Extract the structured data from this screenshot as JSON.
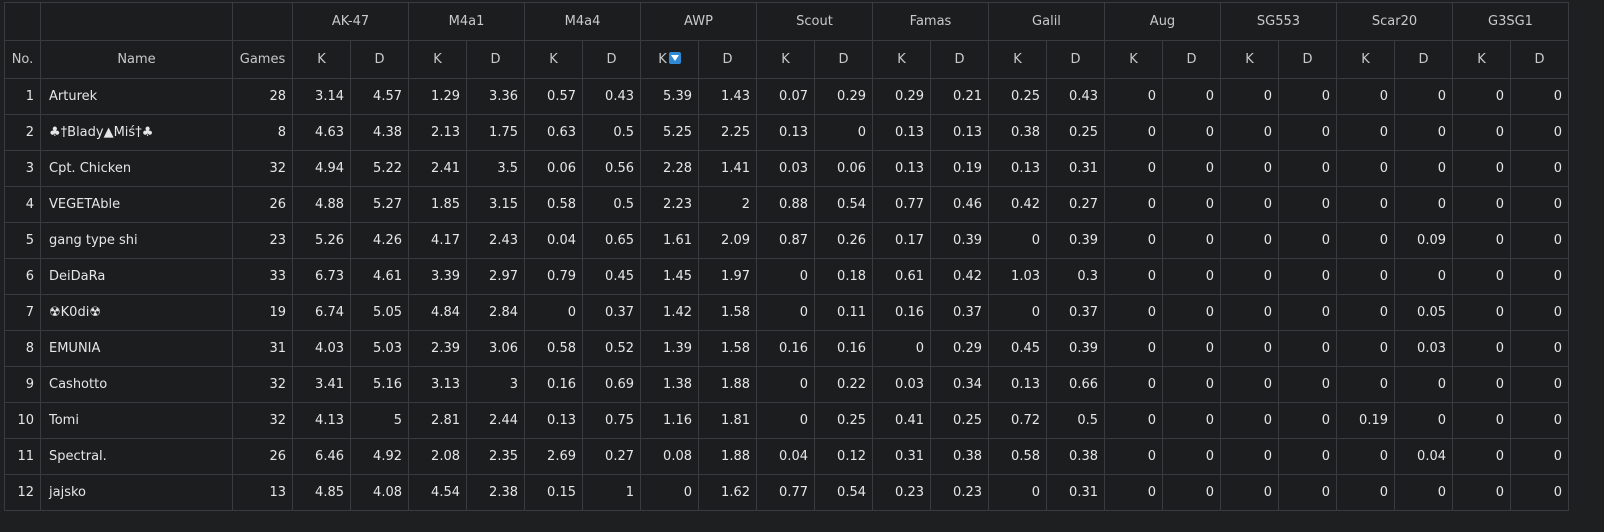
{
  "table": {
    "header_no": "No.",
    "header_name": "Name",
    "header_games": "Games",
    "k_label": "K",
    "d_label": "D",
    "sorted_weapon": "AWP",
    "sorted_column": "K",
    "weapons": [
      "AK-47",
      "M4a1",
      "M4a4",
      "AWP",
      "Scout",
      "Famas",
      "Galil",
      "Aug",
      "SG553",
      "Scar20",
      "G3SG1"
    ],
    "rows": [
      {
        "no": "1",
        "name": "Arturek",
        "games": "28",
        "stats": [
          "3.14",
          "4.57",
          "1.29",
          "3.36",
          "0.57",
          "0.43",
          "5.39",
          "1.43",
          "0.07",
          "0.29",
          "0.29",
          "0.21",
          "0.25",
          "0.43",
          "0",
          "0",
          "0",
          "0",
          "0",
          "0",
          "0",
          "0"
        ]
      },
      {
        "no": "2",
        "name": "♣†Blady▲Miś†♣",
        "games": "8",
        "stats": [
          "4.63",
          "4.38",
          "2.13",
          "1.75",
          "0.63",
          "0.5",
          "5.25",
          "2.25",
          "0.13",
          "0",
          "0.13",
          "0.13",
          "0.38",
          "0.25",
          "0",
          "0",
          "0",
          "0",
          "0",
          "0",
          "0",
          "0"
        ]
      },
      {
        "no": "3",
        "name": "Cpt. Chicken",
        "games": "32",
        "stats": [
          "4.94",
          "5.22",
          "2.41",
          "3.5",
          "0.06",
          "0.56",
          "2.28",
          "1.41",
          "0.03",
          "0.06",
          "0.13",
          "0.19",
          "0.13",
          "0.31",
          "0",
          "0",
          "0",
          "0",
          "0",
          "0",
          "0",
          "0"
        ]
      },
      {
        "no": "4",
        "name": "VEGETAble",
        "games": "26",
        "stats": [
          "4.88",
          "5.27",
          "1.85",
          "3.15",
          "0.58",
          "0.5",
          "2.23",
          "2",
          "0.88",
          "0.54",
          "0.77",
          "0.46",
          "0.42",
          "0.27",
          "0",
          "0",
          "0",
          "0",
          "0",
          "0",
          "0",
          "0"
        ]
      },
      {
        "no": "5",
        "name": "gang type shi",
        "games": "23",
        "stats": [
          "5.26",
          "4.26",
          "4.17",
          "2.43",
          "0.04",
          "0.65",
          "1.61",
          "2.09",
          "0.87",
          "0.26",
          "0.17",
          "0.39",
          "0",
          "0.39",
          "0",
          "0",
          "0",
          "0",
          "0",
          "0.09",
          "0",
          "0"
        ]
      },
      {
        "no": "6",
        "name": "DeiDaRa",
        "games": "33",
        "stats": [
          "6.73",
          "4.61",
          "3.39",
          "2.97",
          "0.79",
          "0.45",
          "1.45",
          "1.97",
          "0",
          "0.18",
          "0.61",
          "0.42",
          "1.03",
          "0.3",
          "0",
          "0",
          "0",
          "0",
          "0",
          "0",
          "0",
          "0"
        ]
      },
      {
        "no": "7",
        "name": "☢K0di☢",
        "games": "19",
        "stats": [
          "6.74",
          "5.05",
          "4.84",
          "2.84",
          "0",
          "0.37",
          "1.42",
          "1.58",
          "0",
          "0.11",
          "0.16",
          "0.37",
          "0",
          "0.37",
          "0",
          "0",
          "0",
          "0",
          "0",
          "0.05",
          "0",
          "0"
        ]
      },
      {
        "no": "8",
        "name": "EMUNIA",
        "games": "31",
        "stats": [
          "4.03",
          "5.03",
          "2.39",
          "3.06",
          "0.58",
          "0.52",
          "1.39",
          "1.58",
          "0.16",
          "0.16",
          "0",
          "0.29",
          "0.45",
          "0.39",
          "0",
          "0",
          "0",
          "0",
          "0",
          "0.03",
          "0",
          "0"
        ]
      },
      {
        "no": "9",
        "name": "Cashotto",
        "games": "32",
        "stats": [
          "3.41",
          "5.16",
          "3.13",
          "3",
          "0.16",
          "0.69",
          "1.38",
          "1.88",
          "0",
          "0.22",
          "0.03",
          "0.34",
          "0.13",
          "0.66",
          "0",
          "0",
          "0",
          "0",
          "0",
          "0",
          "0",
          "0"
        ]
      },
      {
        "no": "10",
        "name": "Tomi",
        "games": "32",
        "stats": [
          "4.13",
          "5",
          "2.81",
          "2.44",
          "0.13",
          "0.75",
          "1.16",
          "1.81",
          "0",
          "0.25",
          "0.41",
          "0.25",
          "0.72",
          "0.5",
          "0",
          "0",
          "0",
          "0",
          "0.19",
          "0",
          "0",
          "0"
        ]
      },
      {
        "no": "11",
        "name": "Spectral.",
        "games": "26",
        "stats": [
          "6.46",
          "4.92",
          "2.08",
          "2.35",
          "2.69",
          "0.27",
          "0.08",
          "1.88",
          "0.04",
          "0.12",
          "0.31",
          "0.38",
          "0.58",
          "0.38",
          "0",
          "0",
          "0",
          "0",
          "0",
          "0.04",
          "0",
          "0"
        ]
      },
      {
        "no": "12",
        "name": "jajsko",
        "games": "13",
        "stats": [
          "4.85",
          "4.08",
          "4.54",
          "2.38",
          "0.15",
          "1",
          "0",
          "1.62",
          "0.77",
          "0.54",
          "0.23",
          "0.23",
          "0",
          "0.31",
          "0",
          "0",
          "0",
          "0",
          "0",
          "0",
          "0",
          "0"
        ]
      }
    ]
  }
}
